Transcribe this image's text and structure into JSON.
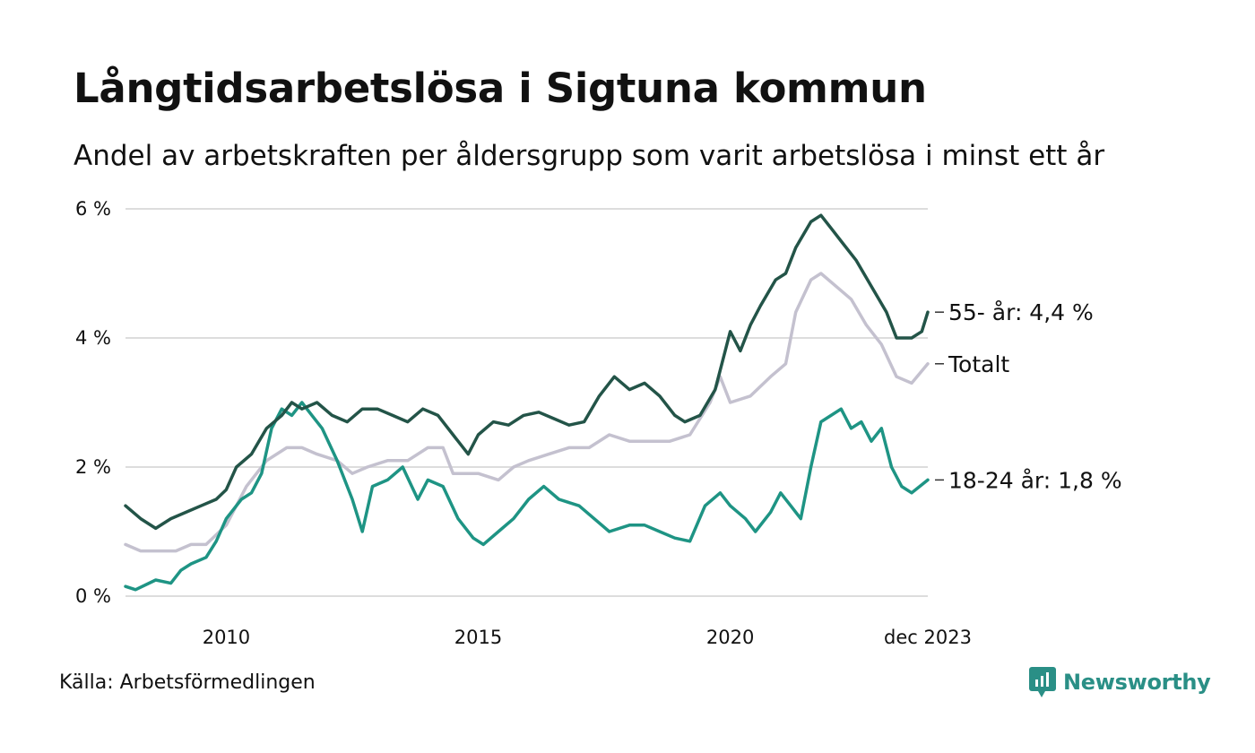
{
  "title": "Långtidsarbetslösa i Sigtuna kommun",
  "subtitle": "Andel av arbetskraften per åldersgrupp som varit arbetslösa i minst ett år",
  "source": "Källa: Arbetsförmedlingen",
  "brand": "Newsworthy",
  "colors": {
    "s55": "#235448",
    "total": "#c4c1cf",
    "s1824": "#1e9484",
    "grid": "#dddddd",
    "brand": "#2a8f86"
  },
  "chart_data": {
    "type": "line",
    "title": "Långtidsarbetslösa i Sigtuna kommun",
    "ylim": [
      0,
      6
    ],
    "y_ticks": [
      {
        "value": 0,
        "label": "0 %"
      },
      {
        "value": 2,
        "label": "2 %"
      },
      {
        "value": 4,
        "label": "4 %"
      },
      {
        "value": 6,
        "label": "6 %"
      }
    ],
    "xlim": [
      2008.0,
      2023.92
    ],
    "x_ticks": [
      {
        "value": 2010,
        "label": "2010"
      },
      {
        "value": 2015,
        "label": "2015"
      },
      {
        "value": 2020,
        "label": "2020"
      },
      {
        "value": 2023.92,
        "label": "dec 2023"
      }
    ],
    "series": [
      {
        "name": "Totalt",
        "end_label": "Totalt",
        "color_key": "total",
        "points": [
          [
            2008.0,
            0.8
          ],
          [
            2008.3,
            0.7
          ],
          [
            2009.0,
            0.7
          ],
          [
            2009.3,
            0.8
          ],
          [
            2009.6,
            0.8
          ],
          [
            2010.0,
            1.1
          ],
          [
            2010.4,
            1.7
          ],
          [
            2010.8,
            2.1
          ],
          [
            2011.2,
            2.3
          ],
          [
            2011.5,
            2.3
          ],
          [
            2011.8,
            2.2
          ],
          [
            2012.2,
            2.1
          ],
          [
            2012.5,
            1.9
          ],
          [
            2012.8,
            2.0
          ],
          [
            2013.2,
            2.1
          ],
          [
            2013.6,
            2.1
          ],
          [
            2014.0,
            2.3
          ],
          [
            2014.3,
            2.3
          ],
          [
            2014.5,
            1.9
          ],
          [
            2015.0,
            1.9
          ],
          [
            2015.4,
            1.8
          ],
          [
            2015.7,
            2.0
          ],
          [
            2016.0,
            2.1
          ],
          [
            2016.4,
            2.2
          ],
          [
            2016.8,
            2.3
          ],
          [
            2017.2,
            2.3
          ],
          [
            2017.6,
            2.5
          ],
          [
            2018.0,
            2.4
          ],
          [
            2018.4,
            2.4
          ],
          [
            2018.8,
            2.4
          ],
          [
            2019.2,
            2.5
          ],
          [
            2019.6,
            3.0
          ],
          [
            2019.8,
            3.4
          ],
          [
            2020.0,
            3.0
          ],
          [
            2020.4,
            3.1
          ],
          [
            2020.8,
            3.4
          ],
          [
            2021.1,
            3.6
          ],
          [
            2021.3,
            4.4
          ],
          [
            2021.6,
            4.9
          ],
          [
            2021.8,
            5.0
          ],
          [
            2022.1,
            4.8
          ],
          [
            2022.4,
            4.6
          ],
          [
            2022.7,
            4.2
          ],
          [
            2023.0,
            3.9
          ],
          [
            2023.3,
            3.4
          ],
          [
            2023.6,
            3.3
          ],
          [
            2023.92,
            3.6
          ]
        ]
      },
      {
        "name": "18-24 år",
        "end_label": "18-24 år: 1,8 %",
        "color_key": "s1824",
        "points": [
          [
            2008.0,
            0.15
          ],
          [
            2008.2,
            0.1
          ],
          [
            2008.6,
            0.25
          ],
          [
            2008.9,
            0.2
          ],
          [
            2009.1,
            0.4
          ],
          [
            2009.3,
            0.5
          ],
          [
            2009.6,
            0.6
          ],
          [
            2009.8,
            0.85
          ],
          [
            2010.0,
            1.2
          ],
          [
            2010.3,
            1.5
          ],
          [
            2010.5,
            1.6
          ],
          [
            2010.7,
            1.9
          ],
          [
            2010.9,
            2.6
          ],
          [
            2011.1,
            2.9
          ],
          [
            2011.3,
            2.8
          ],
          [
            2011.5,
            3.0
          ],
          [
            2011.7,
            2.8
          ],
          [
            2011.9,
            2.6
          ],
          [
            2012.2,
            2.1
          ],
          [
            2012.5,
            1.5
          ],
          [
            2012.7,
            1.0
          ],
          [
            2012.9,
            1.7
          ],
          [
            2013.2,
            1.8
          ],
          [
            2013.5,
            2.0
          ],
          [
            2013.8,
            1.5
          ],
          [
            2014.0,
            1.8
          ],
          [
            2014.3,
            1.7
          ],
          [
            2014.6,
            1.2
          ],
          [
            2014.9,
            0.9
          ],
          [
            2015.1,
            0.8
          ],
          [
            2015.4,
            1.0
          ],
          [
            2015.7,
            1.2
          ],
          [
            2016.0,
            1.5
          ],
          [
            2016.3,
            1.7
          ],
          [
            2016.6,
            1.5
          ],
          [
            2017.0,
            1.4
          ],
          [
            2017.3,
            1.2
          ],
          [
            2017.6,
            1.0
          ],
          [
            2018.0,
            1.1
          ],
          [
            2018.3,
            1.1
          ],
          [
            2018.6,
            1.0
          ],
          [
            2018.9,
            0.9
          ],
          [
            2019.2,
            0.85
          ],
          [
            2019.5,
            1.4
          ],
          [
            2019.8,
            1.6
          ],
          [
            2020.0,
            1.4
          ],
          [
            2020.3,
            1.2
          ],
          [
            2020.5,
            1.0
          ],
          [
            2020.8,
            1.3
          ],
          [
            2021.0,
            1.6
          ],
          [
            2021.2,
            1.4
          ],
          [
            2021.4,
            1.2
          ],
          [
            2021.6,
            2.0
          ],
          [
            2021.8,
            2.7
          ],
          [
            2022.0,
            2.8
          ],
          [
            2022.2,
            2.9
          ],
          [
            2022.4,
            2.6
          ],
          [
            2022.6,
            2.7
          ],
          [
            2022.8,
            2.4
          ],
          [
            2023.0,
            2.6
          ],
          [
            2023.2,
            2.0
          ],
          [
            2023.4,
            1.7
          ],
          [
            2023.6,
            1.6
          ],
          [
            2023.92,
            1.8
          ]
        ]
      },
      {
        "name": "55- år",
        "end_label": "55- år: 4,4 %",
        "color_key": "s55",
        "points": [
          [
            2008.0,
            1.4
          ],
          [
            2008.3,
            1.2
          ],
          [
            2008.6,
            1.05
          ],
          [
            2008.9,
            1.2
          ],
          [
            2009.2,
            1.3
          ],
          [
            2009.5,
            1.4
          ],
          [
            2009.8,
            1.5
          ],
          [
            2010.0,
            1.65
          ],
          [
            2010.2,
            2.0
          ],
          [
            2010.5,
            2.2
          ],
          [
            2010.8,
            2.6
          ],
          [
            2011.1,
            2.8
          ],
          [
            2011.3,
            3.0
          ],
          [
            2011.5,
            2.9
          ],
          [
            2011.8,
            3.0
          ],
          [
            2012.1,
            2.8
          ],
          [
            2012.4,
            2.7
          ],
          [
            2012.7,
            2.9
          ],
          [
            2013.0,
            2.9
          ],
          [
            2013.3,
            2.8
          ],
          [
            2013.6,
            2.7
          ],
          [
            2013.9,
            2.9
          ],
          [
            2014.2,
            2.8
          ],
          [
            2014.5,
            2.5
          ],
          [
            2014.8,
            2.2
          ],
          [
            2015.0,
            2.5
          ],
          [
            2015.3,
            2.7
          ],
          [
            2015.6,
            2.65
          ],
          [
            2015.9,
            2.8
          ],
          [
            2016.2,
            2.85
          ],
          [
            2016.5,
            2.75
          ],
          [
            2016.8,
            2.65
          ],
          [
            2017.1,
            2.7
          ],
          [
            2017.4,
            3.1
          ],
          [
            2017.7,
            3.4
          ],
          [
            2018.0,
            3.2
          ],
          [
            2018.3,
            3.3
          ],
          [
            2018.6,
            3.1
          ],
          [
            2018.9,
            2.8
          ],
          [
            2019.1,
            2.7
          ],
          [
            2019.4,
            2.8
          ],
          [
            2019.7,
            3.2
          ],
          [
            2019.9,
            3.8
          ],
          [
            2020.0,
            4.1
          ],
          [
            2020.2,
            3.8
          ],
          [
            2020.4,
            4.2
          ],
          [
            2020.6,
            4.5
          ],
          [
            2020.9,
            4.9
          ],
          [
            2021.1,
            5.0
          ],
          [
            2021.3,
            5.4
          ],
          [
            2021.6,
            5.8
          ],
          [
            2021.8,
            5.9
          ],
          [
            2022.0,
            5.7
          ],
          [
            2022.2,
            5.5
          ],
          [
            2022.5,
            5.2
          ],
          [
            2022.8,
            4.8
          ],
          [
            2023.1,
            4.4
          ],
          [
            2023.3,
            4.0
          ],
          [
            2023.6,
            4.0
          ],
          [
            2023.8,
            4.1
          ],
          [
            2023.92,
            4.4
          ]
        ]
      }
    ]
  }
}
